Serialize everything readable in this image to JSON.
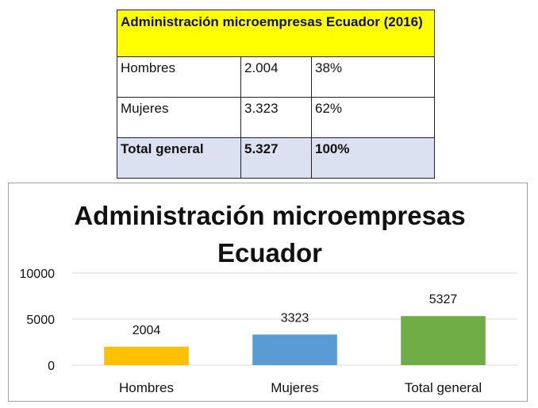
{
  "table": {
    "title": "Administración  microempresas  Ecuador (2016)",
    "rows": [
      {
        "label": "Hombres",
        "value": "2.004",
        "pct": "38%"
      },
      {
        "label": "Mujeres",
        "value": "3.323",
        "pct": "62%"
      }
    ],
    "total": {
      "label": "Total general",
      "value": "5.327",
      "pct": "100%"
    },
    "colors": {
      "title_bg": "#ffff00",
      "total_bg": "#dbe1f1"
    }
  },
  "chart_data": {
    "type": "bar",
    "title": "Administración microempresas Ecuador",
    "categories": [
      "Hombres",
      "Mujeres",
      "Total general"
    ],
    "values": [
      2004,
      3323,
      5327
    ],
    "data_labels": [
      "2004",
      "3323",
      "5327"
    ],
    "bar_colors": [
      "#ffc000",
      "#5b9bd5",
      "#70ad47"
    ],
    "ylim": [
      0,
      10000
    ],
    "yticks": [
      0,
      5000,
      10000
    ],
    "grid": true,
    "legend": false
  }
}
